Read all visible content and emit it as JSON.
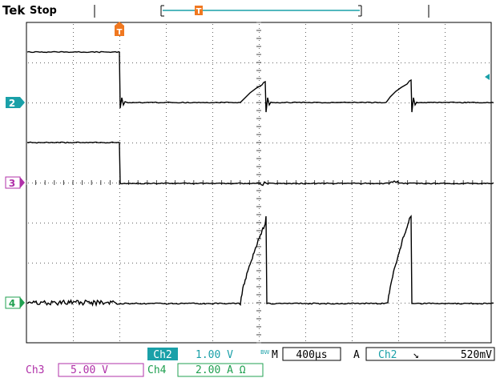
{
  "header": {
    "brand": "Tek",
    "run_state": "Stop"
  },
  "channels": [
    {
      "id": "2",
      "color": "#1aa0a8",
      "marker_icon": "ch2-ground-marker-icon"
    },
    {
      "id": "3",
      "color": "#b030a8",
      "marker_icon": "ch3-ground-marker-icon"
    },
    {
      "id": "4",
      "color": "#20a050",
      "marker_icon": "ch4-ground-marker-icon"
    }
  ],
  "trigger_marker": {
    "label": "T",
    "color": "#f07820"
  },
  "readout": {
    "ch2_label": "Ch2",
    "ch2_scale": "1.00 V",
    "bw_mark": "BW",
    "timebase_prefix": "M",
    "timebase": "400µs",
    "trigger_prefix": "A",
    "trigger_source": "Ch2",
    "trigger_slope": "↘",
    "trigger_level": "520mV",
    "ch3_label": "Ch3",
    "ch3_scale": "5.00 V",
    "ch4_label": "Ch4",
    "ch4_scale": "2.00 A Ω"
  },
  "colors": {
    "ch2": "#1aa0a8",
    "ch3": "#b030a8",
    "ch4": "#20a050",
    "trigger": "#f07820",
    "trace": "#000000",
    "grid": "#888888"
  }
}
